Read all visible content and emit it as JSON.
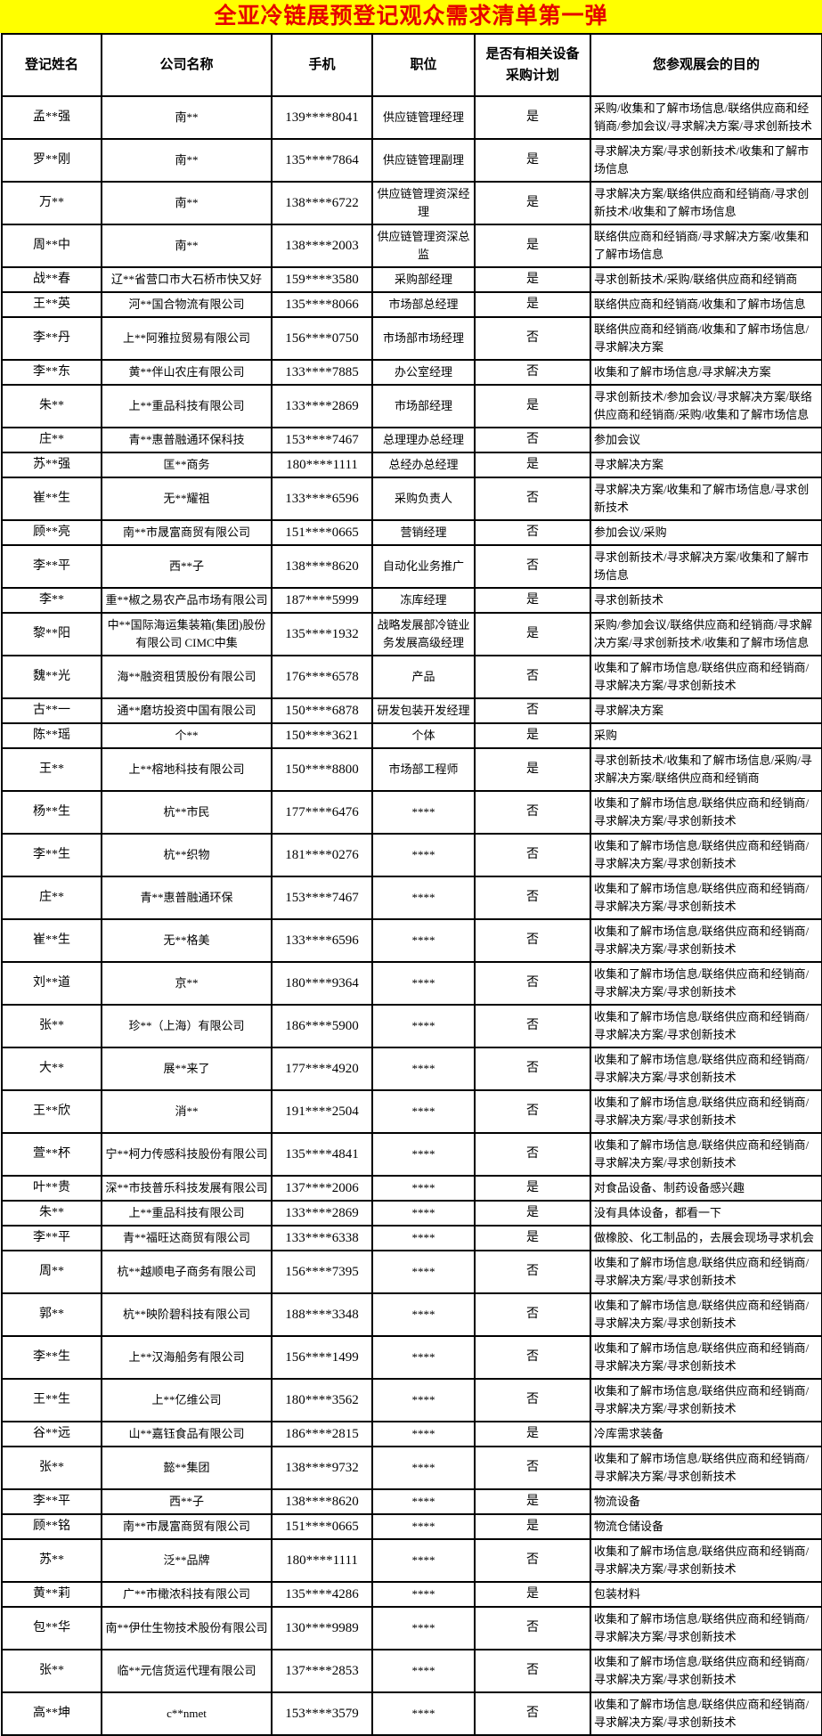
{
  "title": "全亚冷链展预登记观众需求清单第一弹",
  "colors": {
    "title_bg": "#FFFF00",
    "title_text": "#E60000",
    "border": "#000000"
  },
  "table": {
    "headers": [
      "登记姓名",
      "公司名称",
      "手机",
      "职位",
      "是否有相关设备\n采购计划",
      "您参观展会的目的"
    ],
    "rows": [
      {
        "name": "孟**强",
        "company": "南**",
        "phone": "139****8041",
        "position": "供应链管理经理",
        "plan": "是",
        "purpose": "采购/收集和了解市场信息/联络供应商和经销商/参加会议/寻求解决方案/寻求创新技术"
      },
      {
        "name": "罗**刚",
        "company": "南**",
        "phone": "135****7864",
        "position": "供应链管理副理",
        "plan": "是",
        "purpose": "寻求解决方案/寻求创新技术/收集和了解市场信息"
      },
      {
        "name": "万**",
        "company": "南**",
        "phone": "138****6722",
        "position": "供应链管理资深经理",
        "plan": "是",
        "purpose": "寻求解决方案/联络供应商和经销商/寻求创新技术/收集和了解市场信息"
      },
      {
        "name": "周**中",
        "company": "南**",
        "phone": "138****2003",
        "position": "供应链管理资深总监",
        "plan": "是",
        "purpose": "联络供应商和经销商/寻求解决方案/收集和了解市场信息"
      },
      {
        "name": "战**春",
        "company": "辽**省营口市大石桥市快又好",
        "phone": "159****3580",
        "position": "采购部经理",
        "plan": "是",
        "purpose": "寻求创新技术/采购/联络供应商和经销商"
      },
      {
        "name": "王**英",
        "company": "河**国合物流有限公司",
        "phone": "135****8066",
        "position": "市场部总经理",
        "plan": "是",
        "purpose": "联络供应商和经销商/收集和了解市场信息"
      },
      {
        "name": "李**丹",
        "company": "上**阿雅拉贸易有限公司",
        "phone": "156****0750",
        "position": "市场部市场经理",
        "plan": "否",
        "purpose": "联络供应商和经销商/收集和了解市场信息/寻求解决方案"
      },
      {
        "name": "李**东",
        "company": "黄**伴山农庄有限公司",
        "phone": "133****7885",
        "position": "办公室经理",
        "plan": "否",
        "purpose": "收集和了解市场信息/寻求解决方案"
      },
      {
        "name": "朱**",
        "company": "上**重品科技有限公司",
        "phone": "133****2869",
        "position": "市场部经理",
        "plan": "是",
        "purpose": "寻求创新技术/参加会议/寻求解决方案/联络供应商和经销商/采购/收集和了解市场信息"
      },
      {
        "name": "庄**",
        "company": "青**惠普融通环保科技",
        "phone": "153****7467",
        "position": "总理理办总经理",
        "plan": "否",
        "purpose": "参加会议"
      },
      {
        "name": "苏**强",
        "company": "匡**商务",
        "phone": "180****1111",
        "position": "总经办总经理",
        "plan": "是",
        "purpose": "寻求解决方案"
      },
      {
        "name": "崔**生",
        "company": "无**耀祖",
        "phone": "133****6596",
        "position": "采购负责人",
        "plan": "否",
        "purpose": "寻求解决方案/收集和了解市场信息/寻求创新技术"
      },
      {
        "name": "顾**亮",
        "company": "南**市晟富商贸有限公司",
        "phone": "151****0665",
        "position": "营销经理",
        "plan": "否",
        "purpose": "参加会议/采购"
      },
      {
        "name": "李**平",
        "company": "西**子",
        "phone": "138****8620",
        "position": "自动化业务推广",
        "plan": "否",
        "purpose": "寻求创新技术/寻求解决方案/收集和了解市场信息"
      },
      {
        "name": "李**",
        "company": "重**椒之易农产品市场有限公司",
        "phone": "187****5999",
        "position": "冻库经理",
        "plan": "是",
        "purpose": "寻求创新技术"
      },
      {
        "name": "黎**阳",
        "company": "中**国际海运集装箱(集团)股份有限公司 CIMC中集",
        "phone": "135****1932",
        "position": "战略发展部冷链业务发展高级经理",
        "plan": "是",
        "purpose": "采购/参加会议/联络供应商和经销商/寻求解决方案/寻求创新技术/收集和了解市场信息"
      },
      {
        "name": "魏**光",
        "company": "海**融资租赁股份有限公司",
        "phone": "176****6578",
        "position": "产品",
        "plan": "否",
        "purpose": "收集和了解市场信息/联络供应商和经销商/寻求解决方案/寻求创新技术"
      },
      {
        "name": "古**一",
        "company": "通**磨坊投资中国有限公司",
        "phone": "150****6878",
        "position": "研发包装开发经理",
        "plan": "否",
        "purpose": "寻求解决方案"
      },
      {
        "name": "陈**瑶",
        "company": "个**",
        "phone": "150****3621",
        "position": "个体",
        "plan": "是",
        "purpose": "采购"
      },
      {
        "name": "王**",
        "company": "上**榕地科技有限公司",
        "phone": "150****8800",
        "position": "市场部工程师",
        "plan": "是",
        "purpose": "寻求创新技术/收集和了解市场信息/采购/寻求解决方案/联络供应商和经销商"
      },
      {
        "name": "杨**生",
        "company": "杭**市民",
        "phone": "177****6476",
        "position": "****",
        "plan": "否",
        "purpose": "收集和了解市场信息/联络供应商和经销商/寻求解决方案/寻求创新技术"
      },
      {
        "name": "李**生",
        "company": "杭**织物",
        "phone": "181****0276",
        "position": "****",
        "plan": "否",
        "purpose": "收集和了解市场信息/联络供应商和经销商/寻求解决方案/寻求创新技术"
      },
      {
        "name": "庄**",
        "company": "青**惠普融通环保",
        "phone": "153****7467",
        "position": "****",
        "plan": "否",
        "purpose": "收集和了解市场信息/联络供应商和经销商/寻求解决方案/寻求创新技术"
      },
      {
        "name": "崔**生",
        "company": "无**格美",
        "phone": "133****6596",
        "position": "****",
        "plan": "否",
        "purpose": "收集和了解市场信息/联络供应商和经销商/寻求解决方案/寻求创新技术"
      },
      {
        "name": "刘**道",
        "company": "京**",
        "phone": "180****9364",
        "position": "****",
        "plan": "否",
        "purpose": "收集和了解市场信息/联络供应商和经销商/寻求解决方案/寻求创新技术"
      },
      {
        "name": "张**",
        "company": "珍**（上海）有限公司",
        "phone": "186****5900",
        "position": "****",
        "plan": "否",
        "purpose": "收集和了解市场信息/联络供应商和经销商/寻求解决方案/寻求创新技术"
      },
      {
        "name": "大**",
        "company": "展**来了",
        "phone": "177****4920",
        "position": "****",
        "plan": "否",
        "purpose": "收集和了解市场信息/联络供应商和经销商/寻求解决方案/寻求创新技术"
      },
      {
        "name": "王**欣",
        "company": "消**",
        "phone": "191****2504",
        "position": "****",
        "plan": "否",
        "purpose": "收集和了解市场信息/联络供应商和经销商/寻求解决方案/寻求创新技术"
      },
      {
        "name": "萱**杯",
        "company": "宁**柯力传感科技股份有限公司",
        "phone": "135****4841",
        "position": "****",
        "plan": "否",
        "purpose": "收集和了解市场信息/联络供应商和经销商/寻求解决方案/寻求创新技术"
      },
      {
        "name": "叶**贵",
        "company": "深**市技普乐科技发展有限公司",
        "phone": "137****2006",
        "position": "****",
        "plan": "是",
        "purpose": "对食品设备、制药设备感兴趣"
      },
      {
        "name": "朱**",
        "company": "上**重品科技有限公司",
        "phone": "133****2869",
        "position": "****",
        "plan": "是",
        "purpose": "没有具体设备，都看一下"
      },
      {
        "name": "李**平",
        "company": "青**福旺达商贸有限公司",
        "phone": "133****6338",
        "position": "****",
        "plan": "是",
        "purpose": "做橡胶、化工制品的，去展会现场寻求机会"
      },
      {
        "name": "周**",
        "company": "杭**越顺电子商务有限公司",
        "phone": "156****7395",
        "position": "****",
        "plan": "否",
        "purpose": "收集和了解市场信息/联络供应商和经销商/寻求解决方案/寻求创新技术"
      },
      {
        "name": "郭**",
        "company": "杭**映阶碧科技有限公司",
        "phone": "188****3348",
        "position": "****",
        "plan": "否",
        "purpose": "收集和了解市场信息/联络供应商和经销商/寻求解决方案/寻求创新技术"
      },
      {
        "name": "李**生",
        "company": "上**汉海船务有限公司",
        "phone": "156****1499",
        "position": "****",
        "plan": "否",
        "purpose": "收集和了解市场信息/联络供应商和经销商/寻求解决方案/寻求创新技术"
      },
      {
        "name": "王**生",
        "company": "上**亿维公司",
        "phone": "180****3562",
        "position": "****",
        "plan": "否",
        "purpose": "收集和了解市场信息/联络供应商和经销商/寻求解决方案/寻求创新技术"
      },
      {
        "name": "谷**远",
        "company": "山**嘉钰食品有限公司",
        "phone": "186****2815",
        "position": "****",
        "plan": "是",
        "purpose": "冷库需求装备"
      },
      {
        "name": "张**",
        "company": "懿**集团",
        "phone": "138****9732",
        "position": "****",
        "plan": "否",
        "purpose": "收集和了解市场信息/联络供应商和经销商/寻求解决方案/寻求创新技术"
      },
      {
        "name": "李**平",
        "company": "西**子",
        "phone": "138****8620",
        "position": "****",
        "plan": "是",
        "purpose": "物流设备"
      },
      {
        "name": "顾**铭",
        "company": "南**市晟富商贸有限公司",
        "phone": "151****0665",
        "position": "****",
        "plan": "是",
        "purpose": "物流仓储设备"
      },
      {
        "name": "苏**",
        "company": "泛**品牌",
        "phone": "180****1111",
        "position": "****",
        "plan": "否",
        "purpose": "收集和了解市场信息/联络供应商和经销商/寻求解决方案/寻求创新技术"
      },
      {
        "name": "黄**莉",
        "company": "广**市橄浓科技有限公司",
        "phone": "135****4286",
        "position": "****",
        "plan": "是",
        "purpose": "包装材料"
      },
      {
        "name": "包**华",
        "company": "南**伊仕生物技术股份有限公司",
        "phone": "130****9989",
        "position": "****",
        "plan": "否",
        "purpose": "收集和了解市场信息/联络供应商和经销商/寻求解决方案/寻求创新技术"
      },
      {
        "name": "张**",
        "company": "临**元信货运代理有限公司",
        "phone": "137****2853",
        "position": "****",
        "plan": "否",
        "purpose": "收集和了解市场信息/联络供应商和经销商/寻求解决方案/寻求创新技术"
      },
      {
        "name": "高**坤",
        "company": "c**nmet",
        "phone": "153****3579",
        "position": "****",
        "plan": "否",
        "purpose": "收集和了解市场信息/联络供应商和经销商/寻求解决方案/寻求创新技术"
      }
    ]
  }
}
